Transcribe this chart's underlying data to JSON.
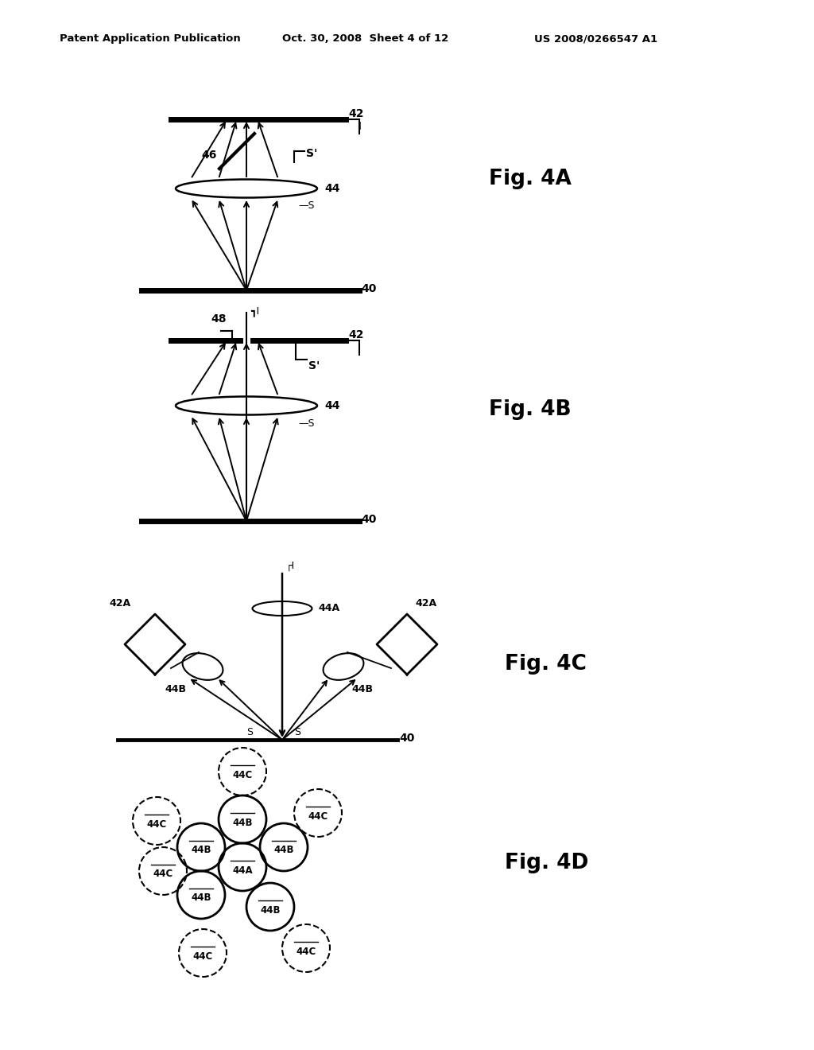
{
  "header_left": "Patent Application Publication",
  "header_mid": "Oct. 30, 2008  Sheet 4 of 12",
  "header_right": "US 2008/0266547 A1",
  "fig4a_label": "Fig. 4A",
  "fig4b_label": "Fig. 4B",
  "fig4c_label": "Fig. 4C",
  "fig4d_label": "Fig. 4D",
  "background": "#ffffff"
}
